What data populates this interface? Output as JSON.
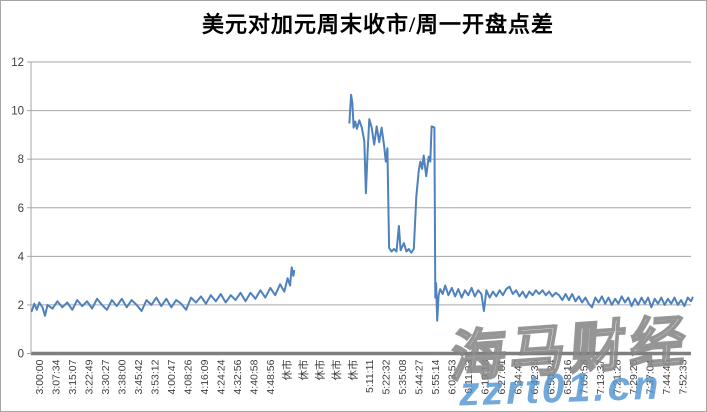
{
  "watermarks": {
    "brand": "海马财经",
    "site": "zzrt01.cn"
  },
  "colors": {
    "line": "#4f81bd",
    "grid": "#a6a6a6",
    "axis": "#7f7f7f",
    "tick_text": "#3f3f3f",
    "title_text": "#000000",
    "watermark_site": "#4f93d2"
  },
  "chart_data": {
    "type": "line",
    "title": "美元对加元周末收市/周一开盘点差",
    "xlabel": "",
    "ylabel": "",
    "ylim": [
      0,
      12
    ],
    "yticks": [
      0,
      2,
      4,
      6,
      8,
      10,
      12
    ],
    "grid": true,
    "legend": false,
    "x_tick_labels": [
      "3:00:00",
      "3:07:34",
      "3:15:07",
      "3:22:49",
      "3:30:27",
      "3:38:00",
      "3:45:42",
      "3:53:12",
      "4:00:47",
      "4:08:26",
      "4:16:09",
      "4:24:24",
      "4:32:56",
      "4:40:58",
      "4:48:56",
      "休市",
      "休市",
      "休市",
      "休市",
      "休市",
      "5:11:11",
      "5:22:32",
      "5:35:08",
      "5:44:27",
      "5:55:14",
      "6:03:53",
      "6:11:33",
      "6:19:18",
      "6:27:01",
      "6:34:47",
      "6:42:35",
      "6:50:24",
      "6:58:16",
      "7:05:58",
      "7:13:37",
      "7:21:28",
      "7:29:25",
      "7:37:04",
      "7:44:46",
      "7:52:33"
    ],
    "series": [
      {
        "segments": [
          [
            [
              -0.45,
              1.75
            ],
            [
              -0.3,
              2.05
            ],
            [
              -0.15,
              1.8
            ],
            [
              0,
              2.1
            ],
            [
              0.2,
              1.9
            ],
            [
              0.35,
              1.55
            ],
            [
              0.5,
              2.0
            ],
            [
              0.8,
              1.85
            ],
            [
              1.1,
              2.15
            ],
            [
              1.4,
              1.9
            ],
            [
              1.7,
              2.1
            ],
            [
              2.0,
              1.8
            ],
            [
              2.3,
              2.2
            ],
            [
              2.6,
              1.95
            ],
            [
              2.9,
              2.15
            ],
            [
              3.2,
              1.85
            ],
            [
              3.5,
              2.25
            ],
            [
              3.8,
              2.0
            ],
            [
              4.1,
              1.8
            ],
            [
              4.4,
              2.2
            ],
            [
              4.7,
              1.95
            ],
            [
              5.0,
              2.25
            ],
            [
              5.3,
              1.9
            ],
            [
              5.6,
              2.2
            ],
            [
              5.9,
              2.0
            ],
            [
              6.2,
              1.75
            ],
            [
              6.5,
              2.2
            ],
            [
              6.8,
              2.0
            ],
            [
              7.1,
              2.3
            ],
            [
              7.4,
              1.95
            ],
            [
              7.7,
              2.25
            ],
            [
              8.0,
              1.9
            ],
            [
              8.3,
              2.2
            ],
            [
              8.6,
              2.05
            ],
            [
              8.9,
              1.8
            ],
            [
              9.2,
              2.3
            ],
            [
              9.5,
              2.1
            ],
            [
              9.8,
              2.35
            ],
            [
              10.1,
              2.05
            ],
            [
              10.4,
              2.4
            ],
            [
              10.7,
              2.15
            ],
            [
              11.0,
              2.45
            ],
            [
              11.3,
              2.1
            ],
            [
              11.6,
              2.4
            ],
            [
              11.9,
              2.2
            ],
            [
              12.2,
              2.5
            ],
            [
              12.5,
              2.15
            ],
            [
              12.8,
              2.5
            ],
            [
              13.1,
              2.25
            ],
            [
              13.4,
              2.6
            ],
            [
              13.7,
              2.3
            ],
            [
              14.0,
              2.7
            ],
            [
              14.3,
              2.4
            ],
            [
              14.6,
              2.85
            ],
            [
              14.85,
              2.55
            ],
            [
              15.05,
              3.1
            ],
            [
              15.2,
              2.8
            ],
            [
              15.3,
              3.55
            ],
            [
              15.4,
              3.2
            ],
            [
              15.45,
              3.4
            ]
          ],
          [
            [
              18.8,
              9.5
            ],
            [
              18.9,
              10.65
            ],
            [
              18.98,
              10.3
            ],
            [
              19.05,
              9.3
            ],
            [
              19.15,
              9.55
            ],
            [
              19.25,
              9.25
            ],
            [
              19.4,
              9.6
            ],
            [
              19.55,
              9.3
            ],
            [
              19.7,
              8.75
            ],
            [
              19.8,
              6.6
            ],
            [
              19.9,
              8.3
            ],
            [
              20.0,
              9.65
            ],
            [
              20.15,
              9.3
            ],
            [
              20.3,
              8.6
            ],
            [
              20.45,
              9.35
            ],
            [
              20.6,
              8.7
            ],
            [
              20.75,
              9.3
            ],
            [
              20.9,
              8.55
            ],
            [
              21.0,
              7.9
            ],
            [
              21.1,
              8.45
            ],
            [
              21.2,
              4.35
            ],
            [
              21.35,
              4.2
            ],
            [
              21.5,
              4.3
            ],
            [
              21.65,
              4.2
            ],
            [
              21.8,
              5.25
            ],
            [
              21.9,
              4.25
            ],
            [
              22.1,
              4.55
            ],
            [
              22.25,
              4.2
            ],
            [
              22.4,
              4.3
            ],
            [
              22.55,
              4.15
            ],
            [
              22.7,
              4.3
            ],
            [
              22.85,
              6.45
            ],
            [
              23.0,
              7.55
            ],
            [
              23.1,
              7.9
            ],
            [
              23.2,
              7.6
            ],
            [
              23.3,
              8.15
            ],
            [
              23.45,
              7.3
            ],
            [
              23.6,
              8.1
            ],
            [
              23.7,
              7.9
            ],
            [
              23.78,
              9.35
            ],
            [
              23.95,
              9.3
            ],
            [
              24.0,
              2.3
            ],
            [
              24.05,
              2.9
            ],
            [
              24.12,
              1.35
            ],
            [
              24.2,
              2.4
            ],
            [
              24.3,
              2.65
            ],
            [
              24.45,
              2.45
            ],
            [
              24.6,
              2.8
            ],
            [
              24.8,
              2.4
            ],
            [
              25.0,
              2.7
            ],
            [
              25.2,
              2.35
            ],
            [
              25.4,
              2.65
            ],
            [
              25.6,
              2.3
            ],
            [
              25.8,
              2.6
            ],
            [
              26.0,
              2.4
            ],
            [
              26.2,
              2.7
            ],
            [
              26.4,
              2.35
            ],
            [
              26.6,
              2.6
            ],
            [
              26.8,
              2.45
            ],
            [
              26.95,
              1.75
            ],
            [
              27.1,
              2.6
            ],
            [
              27.3,
              2.3
            ],
            [
              27.5,
              2.55
            ],
            [
              27.7,
              2.35
            ],
            [
              27.9,
              2.6
            ],
            [
              28.1,
              2.4
            ],
            [
              28.3,
              2.65
            ],
            [
              28.5,
              2.75
            ],
            [
              28.7,
              2.45
            ],
            [
              28.9,
              2.6
            ],
            [
              29.1,
              2.35
            ],
            [
              29.3,
              2.55
            ],
            [
              29.5,
              2.3
            ],
            [
              29.7,
              2.55
            ],
            [
              29.9,
              2.4
            ],
            [
              30.1,
              2.6
            ],
            [
              30.3,
              2.45
            ],
            [
              30.5,
              2.6
            ],
            [
              30.7,
              2.4
            ],
            [
              30.9,
              2.55
            ],
            [
              31.1,
              2.35
            ],
            [
              31.3,
              2.5
            ],
            [
              31.5,
              2.4
            ],
            [
              31.7,
              2.2
            ],
            [
              31.9,
              2.45
            ],
            [
              32.1,
              2.2
            ],
            [
              32.3,
              2.45
            ],
            [
              32.5,
              2.15
            ],
            [
              32.7,
              2.35
            ],
            [
              32.9,
              2.1
            ],
            [
              33.1,
              2.3
            ],
            [
              33.3,
              2.05
            ],
            [
              33.5,
              1.9
            ],
            [
              33.7,
              2.3
            ],
            [
              33.9,
              2.1
            ],
            [
              34.1,
              2.35
            ],
            [
              34.3,
              2.05
            ],
            [
              34.5,
              2.3
            ],
            [
              34.7,
              2.0
            ],
            [
              34.9,
              2.25
            ],
            [
              35.1,
              2.05
            ],
            [
              35.3,
              2.35
            ],
            [
              35.5,
              2.1
            ],
            [
              35.7,
              2.3
            ],
            [
              35.9,
              1.95
            ],
            [
              36.1,
              2.25
            ],
            [
              36.3,
              2.0
            ],
            [
              36.5,
              2.3
            ],
            [
              36.7,
              2.05
            ],
            [
              36.9,
              2.3
            ],
            [
              37.1,
              1.9
            ],
            [
              37.3,
              2.25
            ],
            [
              37.5,
              2.05
            ],
            [
              37.7,
              2.3
            ],
            [
              37.9,
              2.0
            ],
            [
              38.1,
              2.25
            ],
            [
              38.3,
              2.05
            ],
            [
              38.5,
              2.3
            ],
            [
              38.7,
              2.0
            ],
            [
              38.9,
              2.2
            ],
            [
              39.1,
              1.95
            ],
            [
              39.3,
              2.3
            ],
            [
              39.5,
              2.15
            ],
            [
              39.6,
              2.3
            ]
          ]
        ]
      }
    ]
  }
}
